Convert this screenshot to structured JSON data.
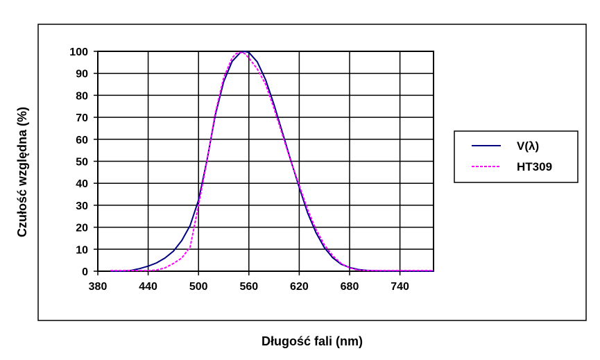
{
  "chart_data": {
    "type": "line",
    "xlabel": "Długość fali (nm)",
    "ylabel": "Czułość względna (%)",
    "xlim": [
      380,
      780
    ],
    "ylim": [
      0,
      100
    ],
    "x_ticks": [
      380,
      440,
      500,
      560,
      620,
      680,
      740
    ],
    "x_tick_labels": [
      "380",
      "440",
      "500",
      "560",
      "620",
      "680",
      "740"
    ],
    "y_ticks": [
      0,
      10,
      20,
      30,
      40,
      50,
      60,
      70,
      80,
      90,
      100
    ],
    "y_tick_labels": [
      "0",
      "10",
      "20",
      "30",
      "40",
      "50",
      "60",
      "70",
      "80",
      "90",
      "100"
    ],
    "grid": true,
    "legend_position": "right",
    "series": [
      {
        "name": "V(λ)",
        "color": "#000080",
        "line_style": "solid",
        "x": [
          395,
          410,
          420,
          430,
          440,
          450,
          460,
          470,
          480,
          490,
          500,
          510,
          520,
          530,
          540,
          550,
          555,
          560,
          570,
          580,
          590,
          600,
          610,
          620,
          630,
          640,
          650,
          660,
          670,
          680,
          690,
          700,
          710,
          720,
          780
        ],
        "y": [
          0,
          0,
          0.4,
          1.2,
          2.3,
          3.8,
          6,
          9.1,
          13.9,
          20.8,
          32.3,
          50.3,
          71,
          86.2,
          95.4,
          99.5,
          100,
          99.5,
          95.2,
          87,
          75.7,
          63.1,
          50.3,
          38.1,
          26.5,
          17.5,
          10.7,
          6.1,
          3.2,
          1.7,
          0.8,
          0.4,
          0.2,
          0.1,
          0
        ]
      },
      {
        "name": "HT309",
        "color": "#FF00FF",
        "line_style": "dashed",
        "x": [
          395,
          420,
          440,
          450,
          460,
          470,
          480,
          490,
          500,
          510,
          520,
          530,
          540,
          545,
          550,
          555,
          560,
          570,
          580,
          590,
          600,
          610,
          620,
          630,
          640,
          650,
          660,
          670,
          680,
          690,
          700,
          720,
          780
        ],
        "y": [
          0.3,
          0.3,
          0.3,
          0.5,
          1.5,
          3.5,
          6,
          11,
          30,
          50,
          72,
          88,
          97,
          99,
          99.5,
          99,
          97,
          92,
          85,
          74,
          62,
          50,
          39,
          28,
          19,
          12,
          7,
          3.5,
          1.5,
          0.5,
          0.3,
          0.3,
          0.3
        ]
      }
    ]
  }
}
